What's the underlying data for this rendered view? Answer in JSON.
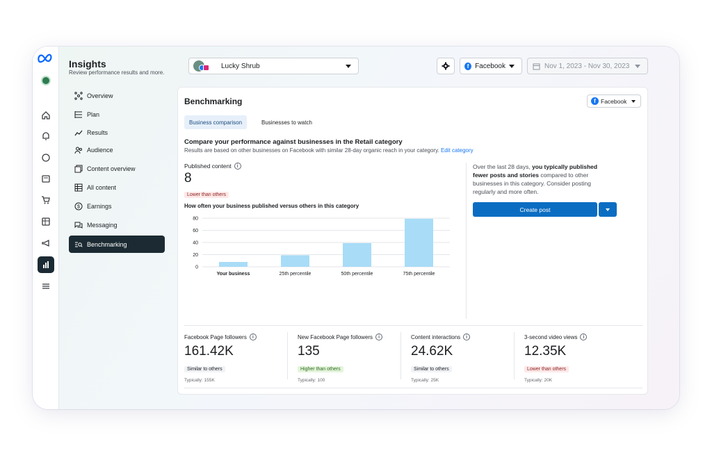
{
  "app": {
    "title": "Insights",
    "subtitle": "Review performance results and more."
  },
  "rail": {
    "icons": [
      "meta-logo-icon",
      "home-icon",
      "notifications-icon",
      "messages-icon",
      "content-icon",
      "commerce-icon",
      "planner-icon",
      "ads-icon",
      "insights-icon",
      "menu-icon"
    ]
  },
  "nav": {
    "items": [
      {
        "label": "Overview",
        "icon": "overview-icon"
      },
      {
        "label": "Plan",
        "icon": "plan-icon"
      },
      {
        "label": "Results",
        "icon": "results-icon"
      },
      {
        "label": "Audience",
        "icon": "audience-icon"
      },
      {
        "label": "Content overview",
        "icon": "content-overview-icon"
      },
      {
        "label": "All content",
        "icon": "all-content-icon"
      },
      {
        "label": "Earnings",
        "icon": "earnings-icon"
      },
      {
        "label": "Messaging",
        "icon": "messaging-icon"
      },
      {
        "label": "Benchmarking",
        "icon": "benchmarking-icon",
        "active": true
      }
    ]
  },
  "topbar": {
    "page_name": "Lucky Shrub",
    "platform": "Facebook",
    "date_range": "Nov 1, 2023 - Nov 30, 2023"
  },
  "card": {
    "title": "Benchmarking",
    "platform": "Facebook",
    "tabs": [
      "Business comparison",
      "Businesses to watch"
    ],
    "compare_title": "Compare your performance against businesses in the Retail category",
    "compare_desc": "Results are based on other businesses on Facebook with similar 28-day organic reach in your category.",
    "edit_link": "Edit category",
    "published_label": "Published content",
    "published_value": "8",
    "published_badge": "Lower than others",
    "chart_title": "How often your business published versus others in this category",
    "insight_prefix": "Over the last 28 days,",
    "insight_bold": "you typically published fewer posts and stories",
    "insight_suffix": "compared to other businesses in this category. Consider posting regularly and more often.",
    "create_post": "Create post"
  },
  "chart_data": {
    "type": "bar",
    "categories": [
      "Your business",
      "25th percentile",
      "50th percentile",
      "75th percentile"
    ],
    "values": [
      8,
      19,
      39,
      79
    ],
    "yticks": [
      0,
      20,
      40,
      60,
      80
    ],
    "ylim": [
      0,
      80
    ],
    "bar_color": "#a8dcf7",
    "grid": true
  },
  "metrics": [
    {
      "label": "Facebook Page followers",
      "value": "161.42K",
      "badge": "Similar to others",
      "badge_type": "similar",
      "typical": "Typically: 155K"
    },
    {
      "label": "New Facebook Page followers",
      "value": "135",
      "badge": "Higher than others",
      "badge_type": "higher",
      "typical": "Typically: 100"
    },
    {
      "label": "Content interactions",
      "value": "24.62K",
      "badge": "Similar to others",
      "badge_type": "similar",
      "typical": "Typically: 25K"
    },
    {
      "label": "3-second video views",
      "value": "12.35K",
      "badge": "Lower than others",
      "badge_type": "lower",
      "typical": "Typically: 20K"
    }
  ]
}
